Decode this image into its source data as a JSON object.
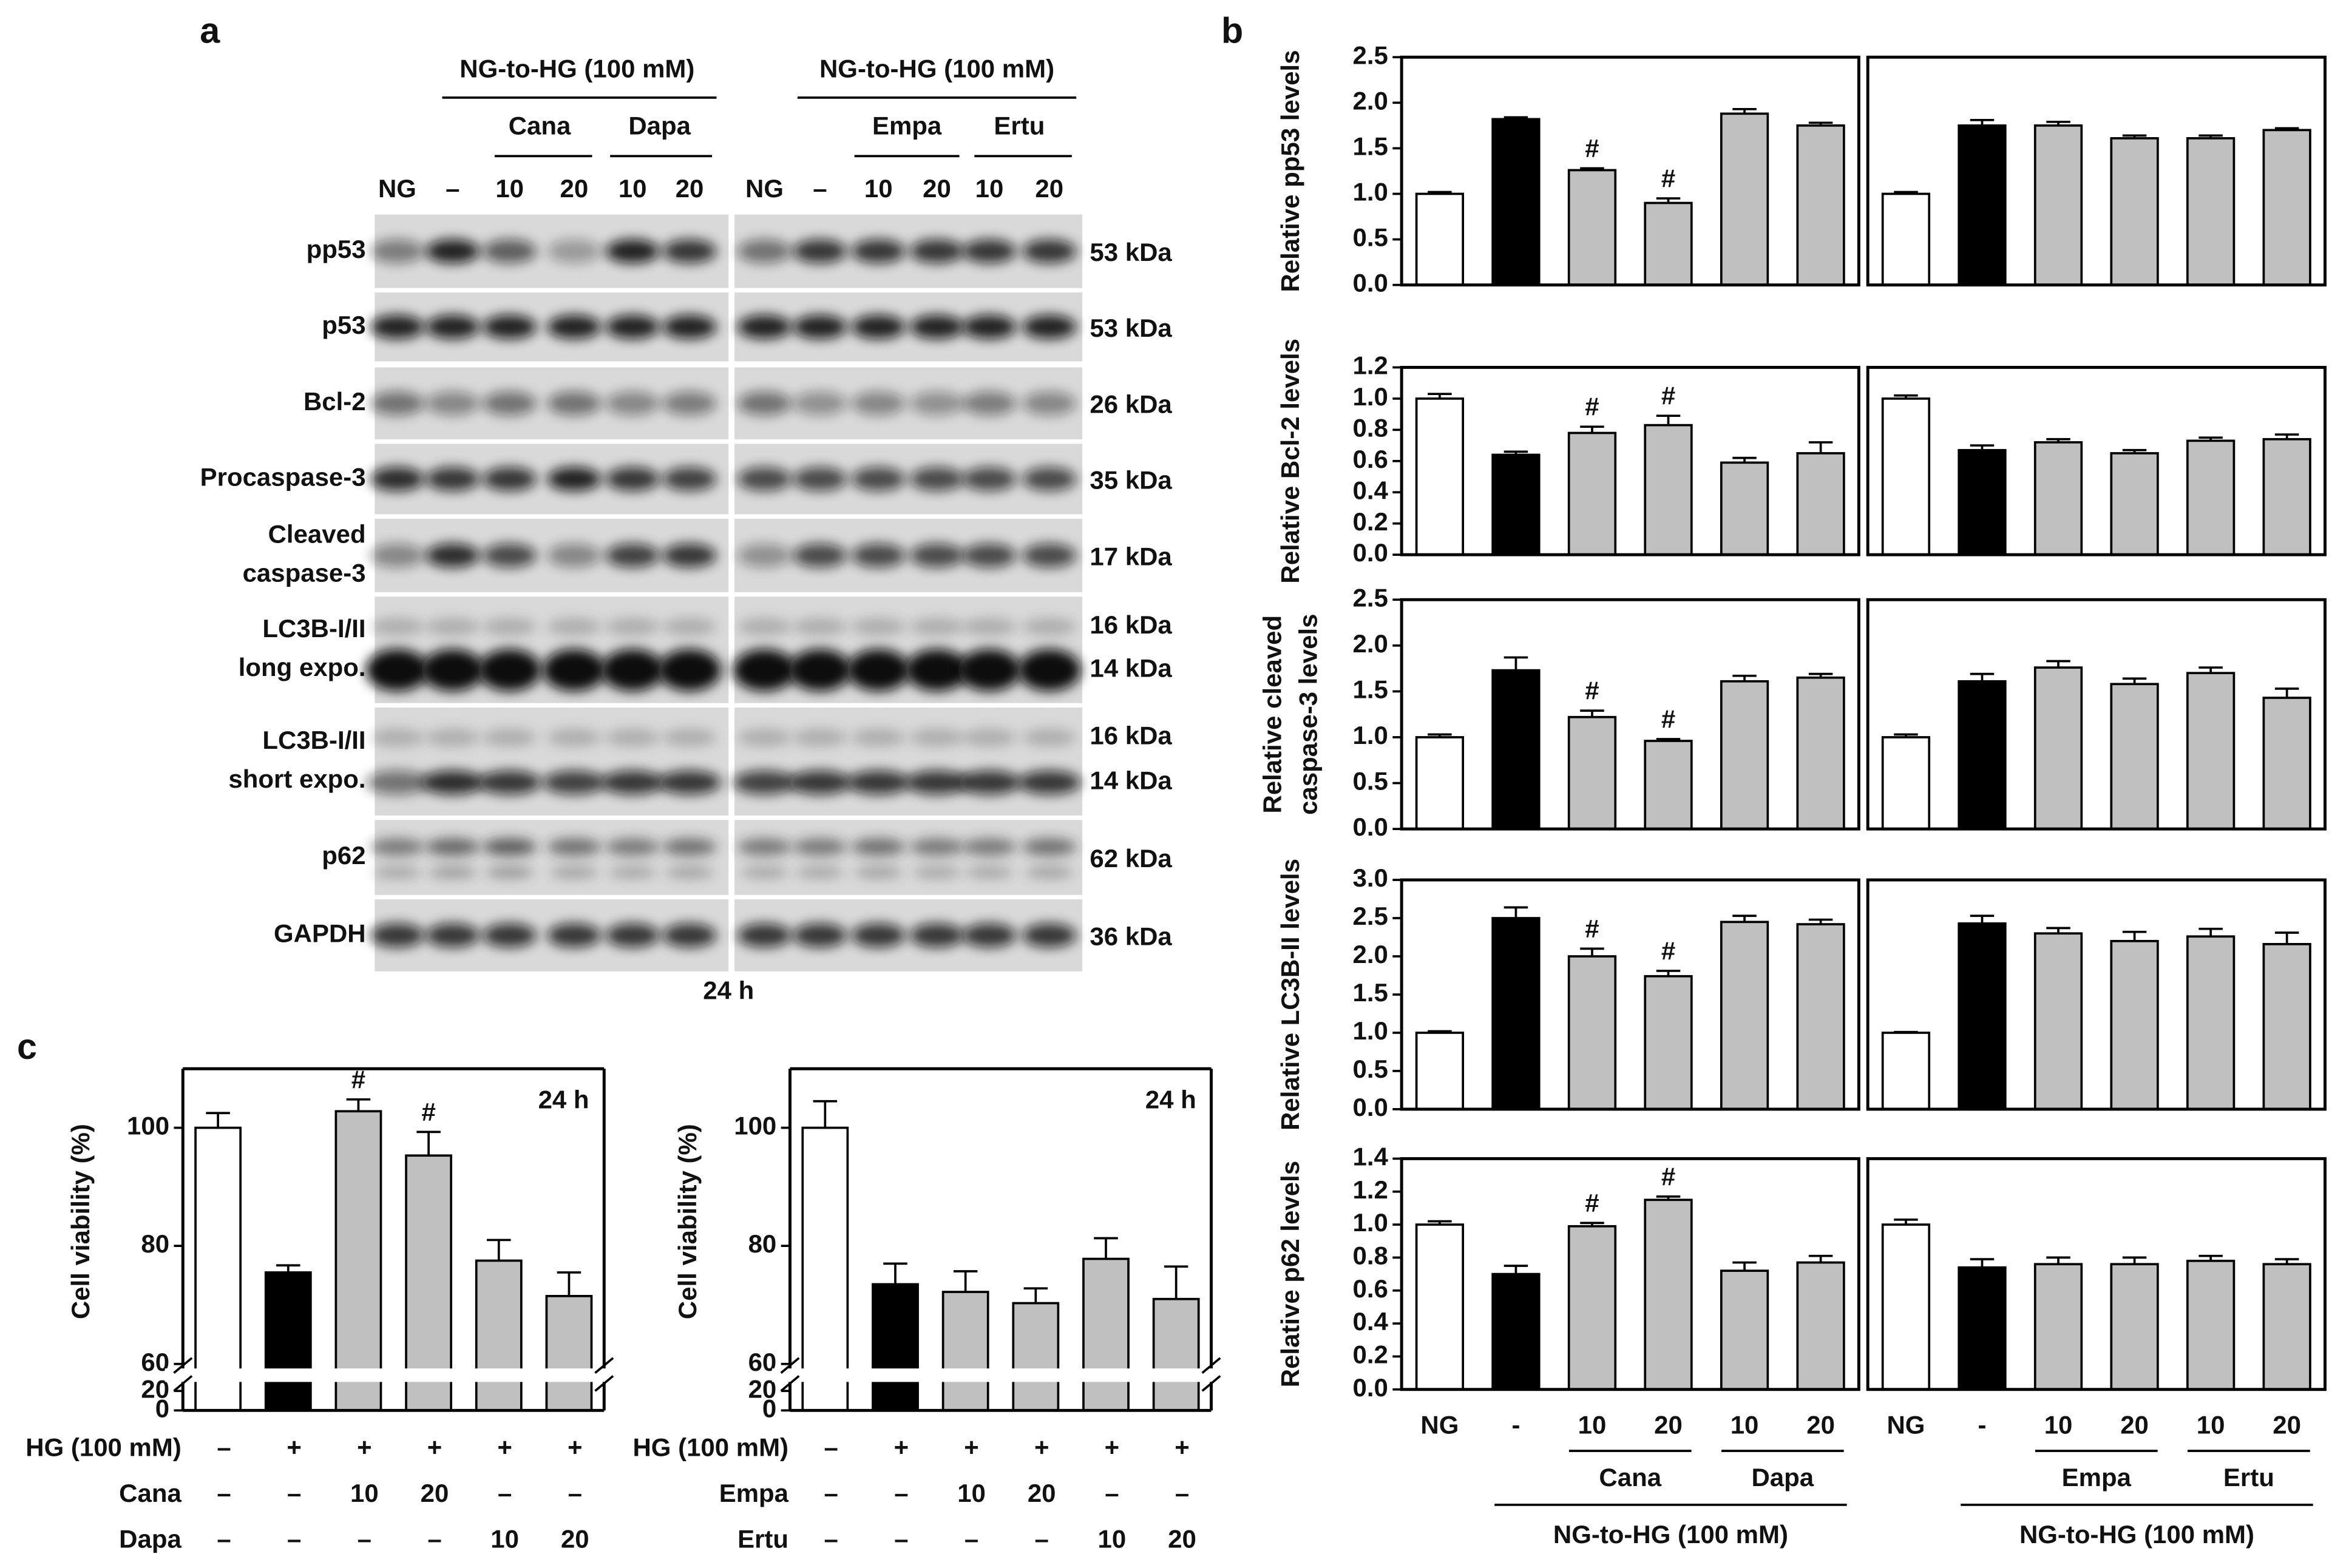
{
  "panel_labels": [
    "a",
    "b",
    "c"
  ],
  "blot": {
    "left": {
      "title": "NG-to-HG (100 mM)",
      "groups": [
        "Cana",
        "Dapa"
      ],
      "lanes": [
        "NG",
        "–",
        "10",
        "20",
        "10",
        "20"
      ]
    },
    "right": {
      "title": "NG-to-HG (100 mM)",
      "groups": [
        "Empa",
        "Ertu"
      ],
      "lanes": [
        "NG",
        "–",
        "10",
        "20",
        "10",
        "20"
      ]
    },
    "rows": [
      {
        "label": [
          "pp53"
        ],
        "sizes": [
          "53 kDa"
        ]
      },
      {
        "label": [
          "p53"
        ],
        "sizes": [
          "53 kDa"
        ]
      },
      {
        "label": [
          "Bcl-2"
        ],
        "sizes": [
          "26 kDa"
        ]
      },
      {
        "label": [
          "Procaspase-3"
        ],
        "sizes": [
          "35 kDa"
        ]
      },
      {
        "label": [
          "Cleaved",
          "caspase-3"
        ],
        "sizes": [
          "17 kDa"
        ]
      },
      {
        "label": [
          "LC3B-I/II",
          "long expo."
        ],
        "sizes": [
          "16 kDa",
          "14 kDa"
        ]
      },
      {
        "label": [
          "LC3B-I/II",
          "short expo."
        ],
        "sizes": [
          "16 kDa",
          "14 kDa"
        ]
      },
      {
        "label": [
          "p62"
        ],
        "sizes": [
          "62 kDa"
        ]
      },
      {
        "label": [
          "GAPDH"
        ],
        "sizes": [
          "36 kDa"
        ]
      }
    ],
    "time": "24 h"
  },
  "chart_data": [
    {
      "type": "bar",
      "ylabel": [
        "Relative pp53 levels"
      ],
      "values": [
        1.0,
        1.82,
        1.26,
        0.9,
        1.88,
        1.75
      ],
      "errors": [
        0.02,
        0.02,
        0.02,
        0.05,
        0.05,
        0.03
      ],
      "annotations": [
        null,
        null,
        "#",
        "#",
        null,
        null
      ],
      "colors": [
        "#ffffff",
        "#000000",
        "#c0c0c0",
        "#c0c0c0",
        "#c0c0c0",
        "#c0c0c0"
      ],
      "ylim": [
        0,
        2.5
      ],
      "yticks": [
        {
          "value": 0,
          "label": "0.0"
        },
        0.5,
        {
          "value": 1,
          "label": "1.0"
        },
        1.5,
        {
          "value": 2,
          "label": "2.0"
        },
        2.5
      ]
    },
    {
      "type": "bar",
      "values": [
        1.0,
        1.75,
        1.75,
        1.61,
        1.61,
        1.7
      ],
      "errors": [
        0.02,
        0.06,
        0.04,
        0.03,
        0.03,
        0.02
      ],
      "colors": [
        "#ffffff",
        "#000000",
        "#c0c0c0",
        "#c0c0c0",
        "#c0c0c0",
        "#c0c0c0"
      ],
      "ylim": [
        0,
        2.5
      ]
    },
    {
      "type": "bar",
      "ylabel": [
        "Relative Bcl-2 levels"
      ],
      "values": [
        1.0,
        0.64,
        0.78,
        0.83,
        0.59,
        0.65
      ],
      "errors": [
        0.03,
        0.02,
        0.04,
        0.06,
        0.03,
        0.07
      ],
      "annotations": [
        null,
        null,
        "#",
        "#",
        null,
        null
      ],
      "colors": [
        "#ffffff",
        "#000000",
        "#c0c0c0",
        "#c0c0c0",
        "#c0c0c0",
        "#c0c0c0"
      ],
      "ylim": [
        0,
        1.2
      ],
      "yticks": [
        {
          "value": 0,
          "label": "0.0"
        },
        0.2,
        0.4,
        0.6,
        0.8,
        {
          "value": 1,
          "label": "1.0"
        },
        1.2
      ]
    },
    {
      "type": "bar",
      "values": [
        1.0,
        0.67,
        0.72,
        0.65,
        0.73,
        0.74
      ],
      "errors": [
        0.02,
        0.03,
        0.02,
        0.02,
        0.02,
        0.03
      ],
      "colors": [
        "#ffffff",
        "#000000",
        "#c0c0c0",
        "#c0c0c0",
        "#c0c0c0",
        "#c0c0c0"
      ],
      "ylim": [
        0,
        1.2
      ]
    },
    {
      "type": "bar",
      "ylabel": [
        "Relative cleaved",
        "caspase-3 levels"
      ],
      "values": [
        1.0,
        1.73,
        1.22,
        0.96,
        1.61,
        1.65
      ],
      "errors": [
        0.03,
        0.14,
        0.07,
        0.02,
        0.06,
        0.04
      ],
      "annotations": [
        null,
        null,
        "#",
        "#",
        null,
        null
      ],
      "colors": [
        "#ffffff",
        "#000000",
        "#c0c0c0",
        "#c0c0c0",
        "#c0c0c0",
        "#c0c0c0"
      ],
      "ylim": [
        0,
        2.5
      ],
      "yticks": [
        {
          "value": 0,
          "label": "0.0"
        },
        0.5,
        {
          "value": 1,
          "label": "1.0"
        },
        1.5,
        {
          "value": 2,
          "label": "2.0"
        },
        2.5
      ]
    },
    {
      "type": "bar",
      "values": [
        1.0,
        1.61,
        1.76,
        1.58,
        1.7,
        1.43
      ],
      "errors": [
        0.03,
        0.08,
        0.07,
        0.06,
        0.06,
        0.1
      ],
      "colors": [
        "#ffffff",
        "#000000",
        "#c0c0c0",
        "#c0c0c0",
        "#c0c0c0",
        "#c0c0c0"
      ],
      "ylim": [
        0,
        2.5
      ]
    },
    {
      "type": "bar",
      "ylabel": [
        "Relative LC3B-II levels"
      ],
      "values": [
        1.0,
        2.5,
        2.0,
        1.74,
        2.45,
        2.42
      ],
      "errors": [
        0.02,
        0.14,
        0.1,
        0.07,
        0.08,
        0.06
      ],
      "annotations": [
        null,
        null,
        "#",
        "#",
        null,
        null
      ],
      "colors": [
        "#ffffff",
        "#000000",
        "#c0c0c0",
        "#c0c0c0",
        "#c0c0c0",
        "#c0c0c0"
      ],
      "ylim": [
        0,
        3
      ],
      "yticks": [
        {
          "value": 0,
          "label": "0.0"
        },
        0.5,
        {
          "value": 1,
          "label": "1.0"
        },
        1.5,
        {
          "value": 2,
          "label": "2.0"
        },
        2.5,
        {
          "value": 3,
          "label": "3.0"
        }
      ]
    },
    {
      "type": "bar",
      "values": [
        1.0,
        2.43,
        2.3,
        2.2,
        2.26,
        2.16
      ],
      "errors": [
        0.01,
        0.1,
        0.07,
        0.12,
        0.1,
        0.15
      ],
      "colors": [
        "#ffffff",
        "#000000",
        "#c0c0c0",
        "#c0c0c0",
        "#c0c0c0",
        "#c0c0c0"
      ],
      "ylim": [
        0,
        3
      ]
    },
    {
      "type": "bar",
      "ylabel": [
        "Relative p62 levels"
      ],
      "categories": [
        "NG",
        "-",
        "10",
        "20",
        "10",
        "20"
      ],
      "groups": [
        "Cana",
        "Dapa"
      ],
      "group_title": "NG-to-HG (100 mM)",
      "values": [
        1.0,
        0.7,
        0.99,
        1.15,
        0.72,
        0.77
      ],
      "errors": [
        0.02,
        0.05,
        0.02,
        0.02,
        0.05,
        0.04
      ],
      "annotations": [
        null,
        null,
        "#",
        "#",
        null,
        null
      ],
      "colors": [
        "#ffffff",
        "#000000",
        "#c0c0c0",
        "#c0c0c0",
        "#c0c0c0",
        "#c0c0c0"
      ],
      "ylim": [
        0,
        1.4
      ],
      "yticks": [
        {
          "value": 0,
          "label": "0.0"
        },
        0.2,
        0.4,
        0.6,
        0.8,
        {
          "value": 1,
          "label": "1.0"
        },
        1.2,
        1.4
      ]
    },
    {
      "type": "bar",
      "categories": [
        "NG",
        "-",
        "10",
        "20",
        "10",
        "20"
      ],
      "groups": [
        "Empa",
        "Ertu"
      ],
      "group_title": "NG-to-HG (100 mM)",
      "values": [
        1.0,
        0.74,
        0.76,
        0.76,
        0.78,
        0.76
      ],
      "errors": [
        0.03,
        0.05,
        0.04,
        0.04,
        0.03,
        0.03
      ],
      "colors": [
        "#ffffff",
        "#000000",
        "#c0c0c0",
        "#c0c0c0",
        "#c0c0c0",
        "#c0c0c0"
      ],
      "ylim": [
        0,
        1.4
      ]
    },
    {
      "type": "bar",
      "ylabel": [
        "Cell viability (%)"
      ],
      "annotation": "24 h",
      "values": [
        100,
        75.5,
        102.8,
        95.3,
        77.5,
        71.5
      ],
      "errors": [
        2.5,
        1.2,
        2,
        4,
        3.5,
        4
      ],
      "annotations": [
        null,
        null,
        "#",
        "#",
        null,
        null
      ],
      "colors": [
        "#ffffff",
        "#000000",
        "#c0c0c0",
        "#c0c0c0",
        "#c0c0c0",
        "#c0c0c0"
      ],
      "ylim": [
        0,
        110
      ],
      "ybreak": [
        20,
        60
      ],
      "yticks": [
        0,
        20,
        60,
        80,
        100
      ],
      "conditions": [
        {
          "name": "HG (100 mM)",
          "values": [
            "–",
            "+",
            "+",
            "+",
            "+",
            "+"
          ]
        },
        {
          "name": "Cana",
          "values": [
            "–",
            "–",
            "10",
            "20",
            "–",
            "–"
          ]
        },
        {
          "name": "Dapa",
          "values": [
            "–",
            "–",
            "–",
            "–",
            "10",
            "20"
          ]
        }
      ]
    },
    {
      "type": "bar",
      "ylabel": [
        "Cell viability (%)"
      ],
      "annotation": "24 h",
      "values": [
        100,
        73.5,
        72.2,
        70.3,
        77.8,
        71
      ],
      "errors": [
        4.5,
        3.5,
        3.5,
        2.5,
        3.5,
        5.5
      ],
      "colors": [
        "#ffffff",
        "#000000",
        "#c0c0c0",
        "#c0c0c0",
        "#c0c0c0",
        "#c0c0c0"
      ],
      "ylim": [
        0,
        110
      ],
      "ybreak": [
        20,
        60
      ],
      "yticks": [
        0,
        20,
        60,
        80,
        100
      ],
      "conditions": [
        {
          "name": "HG (100 mM)",
          "values": [
            "–",
            "+",
            "+",
            "+",
            "+",
            "+"
          ]
        },
        {
          "name": "Empa",
          "values": [
            "–",
            "–",
            "10",
            "20",
            "–",
            "–"
          ]
        },
        {
          "name": "Ertu",
          "values": [
            "–",
            "–",
            "–",
            "–",
            "10",
            "20"
          ]
        }
      ]
    }
  ]
}
